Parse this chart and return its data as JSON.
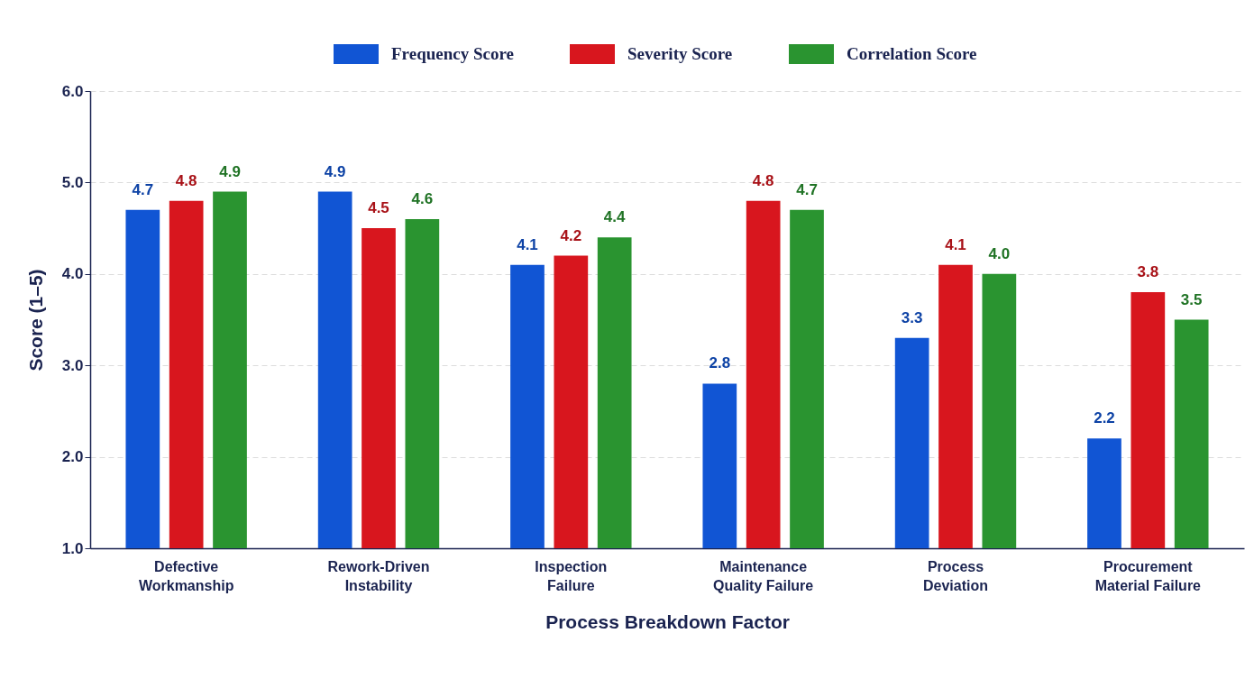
{
  "chart_data": {
    "type": "bar",
    "xlabel": "Process Breakdown Factor",
    "ylabel": "Score (1–5)",
    "categories": [
      "Defective Workmanship",
      "Rework-Driven Instability",
      "Inspection Failure",
      "Maintenance Quality Failure",
      "Process Deviation",
      "Procurement Material Failure"
    ],
    "series": [
      {
        "name": "Frequency Score",
        "color": "#1155d4",
        "values": [
          4.7,
          4.9,
          4.1,
          2.8,
          3.3,
          2.2
        ],
        "value_labels": [
          "4.7",
          "4.9",
          "4.1",
          "2.8",
          "3.3",
          "2.2"
        ]
      },
      {
        "name": "Severity Score",
        "color": "#d8161e",
        "values": [
          4.8,
          4.5,
          4.2,
          4.8,
          4.1,
          3.8
        ],
        "value_labels": [
          "4.8",
          "4.5",
          "4.2",
          "4.8",
          "4.1",
          "3.8"
        ]
      },
      {
        "name": "Correlation Score",
        "color": "#2a9430",
        "values": [
          4.9,
          4.6,
          4.4,
          4.7,
          4.0,
          3.5
        ],
        "value_labels": [
          "4.9",
          "4.6",
          "4.4",
          "4.7",
          "4.0",
          "3.5"
        ]
      }
    ],
    "ylim": [
      1,
      6
    ],
    "yticks": [
      {
        "value": 1,
        "label": "1.0"
      },
      {
        "value": 2,
        "label": "2.0"
      },
      {
        "value": 3,
        "label": "3.0"
      },
      {
        "value": 4,
        "label": "4.0"
      },
      {
        "value": 5,
        "label": "5.0"
      },
      {
        "value": 6,
        "label": "6.0"
      }
    ],
    "grid": "y",
    "legend": "top"
  }
}
